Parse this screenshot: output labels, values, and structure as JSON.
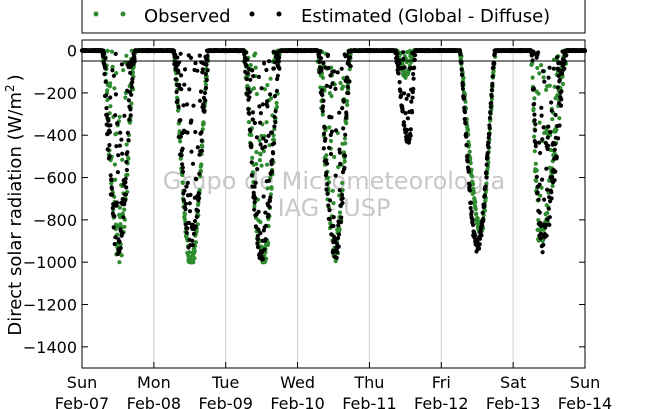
{
  "chart_data": {
    "type": "scatter",
    "ylabel": "Direct solar radiation (W/m",
    "ylabel_sup": "2",
    "ylabel_close": ")",
    "ylim": [
      -1500,
      50
    ],
    "yticks": [
      0,
      -200,
      -400,
      -600,
      -800,
      -1000,
      -1200,
      -1400
    ],
    "xlim": [
      0,
      7
    ],
    "xticks": [
      {
        "x": 0,
        "day": "Sun",
        "date": "Feb-07"
      },
      {
        "x": 1,
        "day": "Mon",
        "date": "Feb-08"
      },
      {
        "x": 2,
        "day": "Tue",
        "date": "Feb-09"
      },
      {
        "x": 3,
        "day": "Wed",
        "date": "Feb-10"
      },
      {
        "x": 4,
        "day": "Thu",
        "date": "Feb-11"
      },
      {
        "x": 5,
        "day": "Fri",
        "date": "Feb-12"
      },
      {
        "x": 6,
        "day": "Sat",
        "date": "Feb-13"
      },
      {
        "x": 7,
        "day": "Sun",
        "date": "Feb-14"
      }
    ],
    "grid": "vertical",
    "legend_position": "top-outside",
    "watermark": [
      "Grupo de Micrometeorologia",
      "IAG - USP"
    ],
    "series": [
      {
        "name": "Observed",
        "color": "#2e8b2e",
        "days": [
          {
            "day": 0,
            "start": 0.29,
            "end": 0.74,
            "peak_time": 0.52,
            "peak": -920,
            "jitter": 380,
            "sparse": true
          },
          {
            "day": 1,
            "start": 0.28,
            "end": 0.76,
            "peak_time": 0.52,
            "peak": -1000,
            "jitter": 80,
            "sparse": false
          },
          {
            "day": 2,
            "start": 0.25,
            "end": 0.76,
            "peak_time": 0.52,
            "peak": -985,
            "jitter": 220,
            "sparse": true
          },
          {
            "day": 3,
            "start": 0.28,
            "end": 0.74,
            "peak_time": 0.53,
            "peak": -920,
            "jitter": 300,
            "sparse": true
          },
          {
            "day": 4,
            "start": 0.38,
            "end": 0.62,
            "peak_time": 0.5,
            "peak": -120,
            "jitter": 40,
            "sparse": true
          },
          {
            "day": 5,
            "start": 0.26,
            "end": 0.75,
            "peak_time": 0.55,
            "peak": -840,
            "jitter": 60,
            "sparse": false
          },
          {
            "day": 6,
            "start": 0.25,
            "end": 0.74,
            "peak_time": 0.37,
            "peak": -880,
            "jitter": 250,
            "sparse": true
          }
        ]
      },
      {
        "name": "Estimated (Global - Diffuse)",
        "color": "#000000",
        "days": [
          {
            "day": 0,
            "start": 0.28,
            "end": 0.74,
            "peak_time": 0.5,
            "peak": -870,
            "jitter": 420,
            "sparse": true
          },
          {
            "day": 1,
            "start": 0.27,
            "end": 0.76,
            "peak_time": 0.52,
            "peak": -900,
            "jitter": 300,
            "sparse": true
          },
          {
            "day": 2,
            "start": 0.25,
            "end": 0.76,
            "peak_time": 0.5,
            "peak": -930,
            "jitter": 280,
            "sparse": true
          },
          {
            "day": 3,
            "start": 0.28,
            "end": 0.74,
            "peak_time": 0.53,
            "peak": -930,
            "jitter": 320,
            "sparse": true
          },
          {
            "day": 4,
            "start": 0.36,
            "end": 0.64,
            "peak_time": 0.55,
            "peak": -430,
            "jitter": 80,
            "sparse": true
          },
          {
            "day": 5,
            "start": 0.26,
            "end": 0.75,
            "peak_time": 0.5,
            "peak": -925,
            "jitter": 60,
            "sparse": false
          },
          {
            "day": 6,
            "start": 0.25,
            "end": 0.74,
            "peak_time": 0.4,
            "peak": -880,
            "jitter": 300,
            "sparse": true
          }
        ]
      }
    ]
  }
}
